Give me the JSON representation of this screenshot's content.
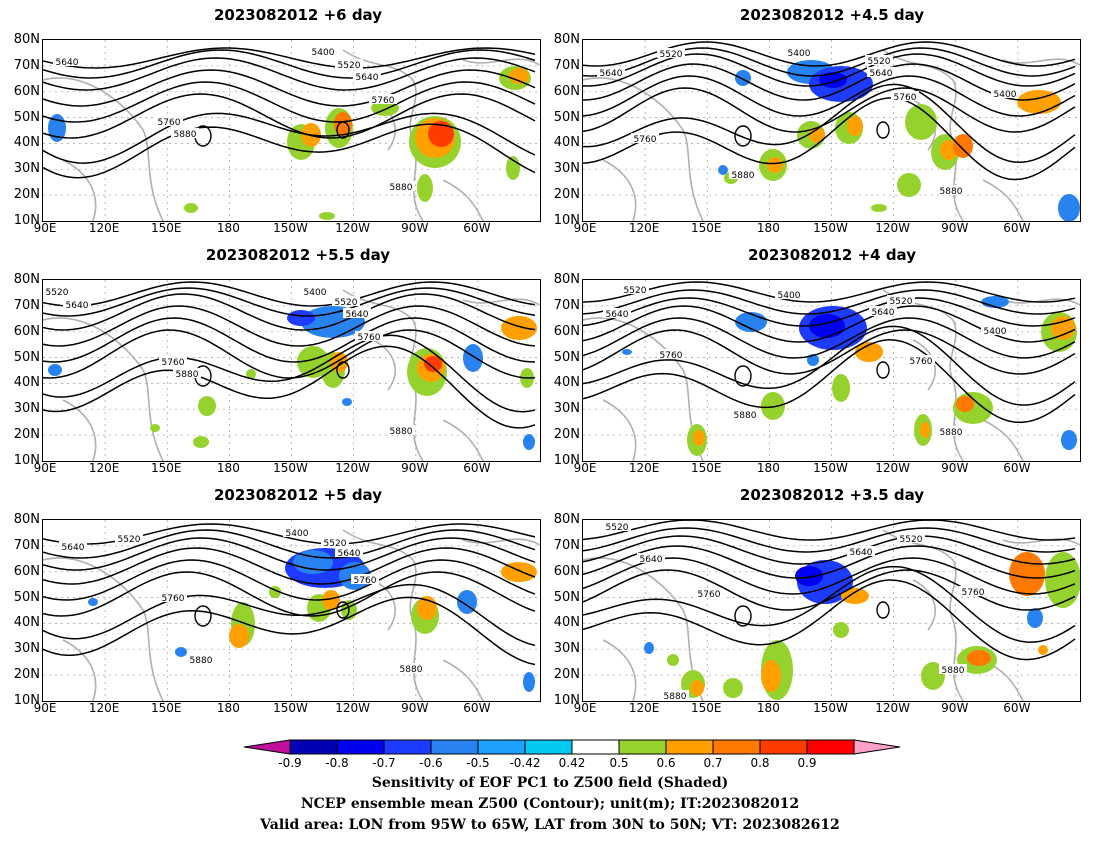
{
  "panels": [
    {
      "id": "p1",
      "title": "2023082012 +6 day",
      "contour_labels": [
        "5400",
        "5520",
        "5640",
        "5640",
        "5760",
        "5760",
        "5880",
        "5880"
      ]
    },
    {
      "id": "p2",
      "title": "2023082012 +4.5 day",
      "contour_labels": [
        "5400",
        "5520",
        "5520",
        "5640",
        "5640",
        "5760",
        "5760",
        "5880",
        "5880",
        "5400"
      ]
    },
    {
      "id": "p3",
      "title": "2023082012 +5.5 day",
      "contour_labels": [
        "5520",
        "5640",
        "5400",
        "5520",
        "5640",
        "5760",
        "5760",
        "5880",
        "5880"
      ]
    },
    {
      "id": "p4",
      "title": "2023082012 +4 day",
      "contour_labels": [
        "5520",
        "5640",
        "5400",
        "5520",
        "5640",
        "5760",
        "5760",
        "5880",
        "5880",
        "5400"
      ]
    },
    {
      "id": "p5",
      "title": "2023082012 +5 day",
      "contour_labels": [
        "5640",
        "5520",
        "5400",
        "5520",
        "5640",
        "5760",
        "5760",
        "5880",
        "5880"
      ]
    },
    {
      "id": "p6",
      "title": "2023082012 +3.5 day",
      "contour_labels": [
        "5520",
        "5640",
        "5520",
        "5640",
        "5760",
        "5760",
        "5880",
        "5880"
      ]
    }
  ],
  "axes": {
    "lat_labels": [
      "80N",
      "70N",
      "60N",
      "50N",
      "40N",
      "30N",
      "20N",
      "10N"
    ],
    "lon_labels": [
      "90E",
      "120E",
      "150E",
      "180",
      "150W",
      "120W",
      "90W",
      "60W"
    ]
  },
  "colorbar": {
    "ticks": [
      "-0.9",
      "-0.8",
      "-0.7",
      "-0.6",
      "-0.5",
      "-0.42",
      "0.42",
      "0.5",
      "0.6",
      "0.7",
      "0.8",
      "0.9"
    ],
    "colors": {
      "left_triangle": "#c0109c",
      "boxes": [
        "#0000b4",
        "#0000f0",
        "#1e3cff",
        "#2882f0",
        "#1ea0ff",
        "#00c8f0",
        "#ffffff",
        "#96d22d",
        "#ffa000",
        "#ff7800",
        "#ff3c00",
        "#ff0000"
      ],
      "right_triangle": "#ffa0c8"
    }
  },
  "caption": {
    "line1": "Sensitivity of EOF PC1 to Z500 field (Shaded)",
    "line2": "NCEP ensemble mean Z500 (Contour); unit(m); IT:2023082012",
    "line3": "Valid area: LON from 95W to 65W, LAT from 30N to 50N; VT: 2023082612"
  }
}
